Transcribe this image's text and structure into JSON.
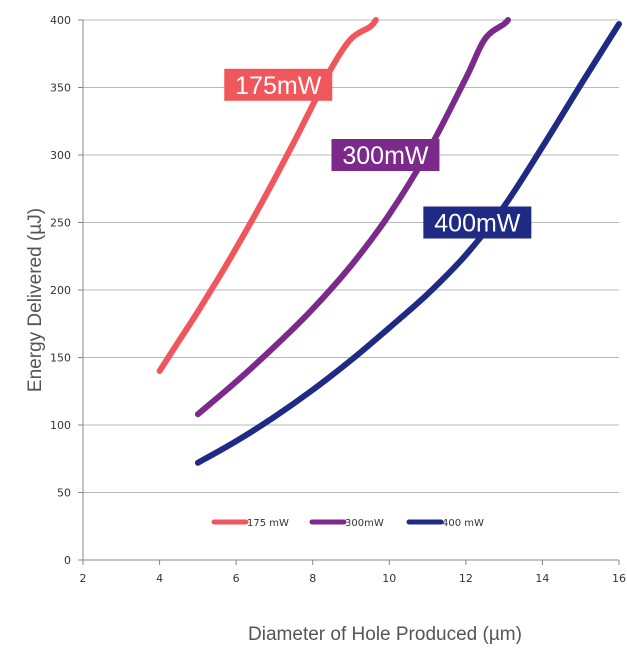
{
  "chart_data": {
    "type": "line",
    "xlabel": "Diameter of Hole Produced (µm)",
    "ylabel": "Energy Delivered (µJ)",
    "xlim": [
      2,
      16
    ],
    "ylim": [
      0,
      400
    ],
    "x_ticks": [
      "2",
      "4",
      "6",
      "8",
      "10",
      "12",
      "14",
      "16"
    ],
    "y_ticks": [
      "0",
      "50",
      "100",
      "150",
      "200",
      "250",
      "300",
      "350",
      "400"
    ],
    "grid": "horizontal",
    "legend_position": "bottom-center",
    "series": [
      {
        "name": "175 mW",
        "callout": "175mW",
        "color": "#f0575d",
        "x": [
          4.0,
          4.5,
          5.0,
          5.5,
          6.0,
          6.5,
          7.0,
          7.5,
          8.0,
          8.5,
          9.0,
          9.5,
          9.65
        ],
        "y": [
          140,
          162,
          184,
          207,
          231,
          256,
          282,
          309,
          337,
          365,
          386,
          395,
          400
        ]
      },
      {
        "name": "300mW",
        "callout": "300mW",
        "color": "#7b2a8c",
        "x": [
          5.0,
          6.0,
          7.0,
          8.0,
          9.0,
          10.0,
          11.0,
          12.0,
          12.5,
          13.0,
          13.1
        ],
        "y": [
          108,
          132,
          158,
          186,
          218,
          256,
          302,
          357,
          386,
          397,
          400
        ]
      },
      {
        "name": "400 mW",
        "callout": "400mW",
        "color": "#1f2a84",
        "x": [
          5.0,
          6.0,
          7.0,
          8.0,
          9.0,
          10.0,
          11.0,
          12.0,
          13.0,
          14.0,
          15.0,
          16.0
        ],
        "y": [
          72,
          88,
          106,
          126,
          148,
          172,
          197,
          226,
          262,
          306,
          352,
          397
        ]
      }
    ]
  }
}
